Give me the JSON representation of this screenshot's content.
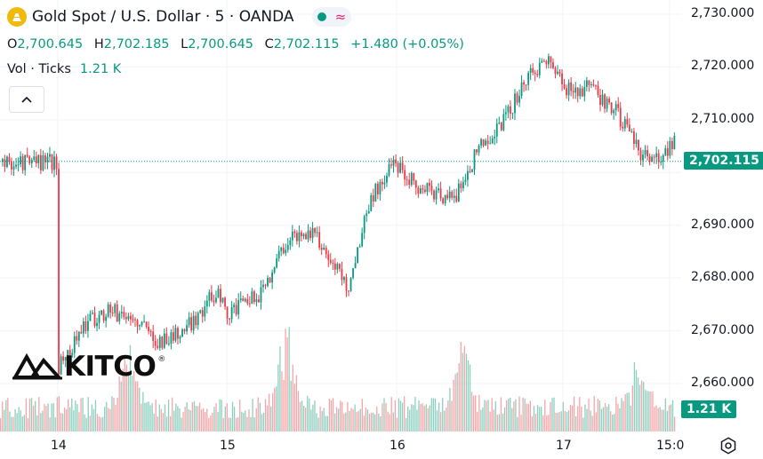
{
  "header": {
    "title": "Gold Spot / U.S. Dollar · 5 · OANDA",
    "icon": "gold-bars-icon"
  },
  "ohlc": {
    "o_label": "O",
    "o_value": "2,700.645",
    "h_label": "H",
    "h_value": "2,702.185",
    "l_label": "L",
    "l_value": "2,700.645",
    "c_label": "C",
    "c_value": "2,702.115",
    "change": "+1.480 (+0.05%)"
  },
  "volume": {
    "label": "Vol · Ticks",
    "value": "1.21 K"
  },
  "logo": {
    "text": "KITCO",
    "reg": "®"
  },
  "price_tag": "2,702.115",
  "volume_tag": "1.21 K",
  "colors": {
    "up": "#089981",
    "down": "#f23645",
    "vol_up": "#8ccfbf",
    "vol_down": "#f7a5a8",
    "grid": "#f0f3fa",
    "tag": "#089981"
  },
  "chart_data": {
    "type": "candlestick",
    "title": "Gold Spot / U.S. Dollar · 5 · OANDA",
    "y_ticks": [
      2730,
      2720,
      2710,
      2690,
      2680,
      2670,
      2660
    ],
    "y_tick_labels": [
      "2,730.000",
      "2,720.000",
      "2,710.000",
      "2,690.000",
      "2,680.000",
      "2,670.000",
      "2,660.000"
    ],
    "ylim": [
      2652.5,
      2732.5
    ],
    "x_tick_labels": [
      "14",
      "15",
      "16",
      "17",
      "15:0"
    ],
    "last_price": 2702.115,
    "price_path": [
      [
        14.0,
        2663
      ],
      [
        14.15,
        2671
      ],
      [
        14.3,
        2674
      ],
      [
        14.45,
        2672
      ],
      [
        14.6,
        2668
      ],
      [
        14.75,
        2670
      ],
      [
        14.95,
        2678
      ],
      [
        15.0,
        2673
      ],
      [
        15.2,
        2677
      ],
      [
        15.35,
        2687
      ],
      [
        15.5,
        2689
      ],
      [
        15.65,
        2682
      ],
      [
        15.72,
        2678
      ],
      [
        15.85,
        2695
      ],
      [
        16.0,
        2702
      ],
      [
        16.15,
        2697
      ],
      [
        16.35,
        2695
      ],
      [
        16.5,
        2705
      ],
      [
        16.65,
        2710
      ],
      [
        16.75,
        2716
      ],
      [
        16.9,
        2722
      ],
      [
        17.0,
        2716
      ],
      [
        17.15,
        2716
      ],
      [
        17.3,
        2712
      ],
      [
        17.45,
        2704
      ],
      [
        17.55,
        2702
      ],
      [
        17.7,
        2708
      ],
      [
        17.85,
        2716
      ],
      [
        17.92,
        2716
      ],
      [
        18.0,
        2706
      ],
      [
        18.05,
        2702
      ]
    ],
    "x_positions": {
      "14": 65,
      "15": 255,
      "16": 446,
      "17": 633,
      "15:0": 753
    },
    "volume_latest": "1.21 K"
  }
}
